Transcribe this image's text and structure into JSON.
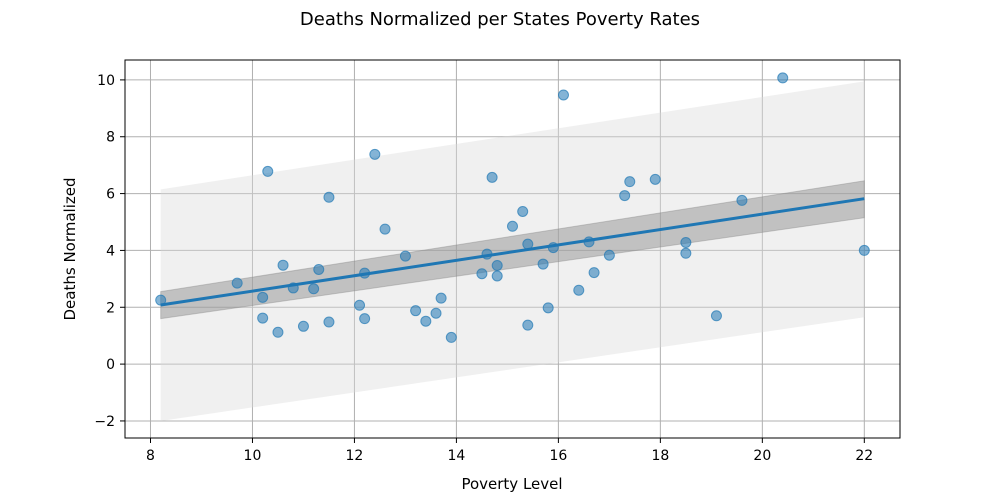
{
  "chart_data": {
    "type": "scatter",
    "title": "Deaths Normalized per States Poverty Rates",
    "xlabel": "Poverty Level",
    "ylabel": "Deaths Normalized",
    "xlim": [
      7.5,
      22.7
    ],
    "ylim": [
      -2.6,
      10.7
    ],
    "xticks": [
      8,
      10,
      12,
      14,
      16,
      18,
      20,
      22
    ],
    "yticks": [
      -2,
      0,
      2,
      4,
      6,
      8,
      10
    ],
    "grid": true,
    "colors": {
      "points": "#1f77b4",
      "regression_line": "#1f77b4",
      "confidence_band": "#888888",
      "prediction_band": "#d9d9d9"
    },
    "points": [
      {
        "x": 8.2,
        "y": 2.25
      },
      {
        "x": 9.7,
        "y": 2.85
      },
      {
        "x": 10.2,
        "y": 2.35
      },
      {
        "x": 10.2,
        "y": 1.62
      },
      {
        "x": 10.3,
        "y": 6.78
      },
      {
        "x": 10.5,
        "y": 1.12
      },
      {
        "x": 10.6,
        "y": 3.48
      },
      {
        "x": 10.8,
        "y": 2.68
      },
      {
        "x": 11.0,
        "y": 1.33
      },
      {
        "x": 11.2,
        "y": 2.65
      },
      {
        "x": 11.3,
        "y": 3.33
      },
      {
        "x": 11.5,
        "y": 5.87
      },
      {
        "x": 11.5,
        "y": 1.48
      },
      {
        "x": 12.1,
        "y": 2.07
      },
      {
        "x": 12.2,
        "y": 3.2
      },
      {
        "x": 12.2,
        "y": 1.6
      },
      {
        "x": 12.4,
        "y": 7.38
      },
      {
        "x": 12.6,
        "y": 4.75
      },
      {
        "x": 13.0,
        "y": 3.8
      },
      {
        "x": 13.2,
        "y": 1.88
      },
      {
        "x": 13.4,
        "y": 1.51
      },
      {
        "x": 13.6,
        "y": 1.79
      },
      {
        "x": 13.7,
        "y": 2.32
      },
      {
        "x": 13.9,
        "y": 0.94
      },
      {
        "x": 14.5,
        "y": 3.18
      },
      {
        "x": 14.6,
        "y": 3.87
      },
      {
        "x": 14.7,
        "y": 6.57
      },
      {
        "x": 14.8,
        "y": 3.47
      },
      {
        "x": 14.8,
        "y": 3.1
      },
      {
        "x": 15.1,
        "y": 4.85
      },
      {
        "x": 15.3,
        "y": 5.37
      },
      {
        "x": 15.4,
        "y": 4.22
      },
      {
        "x": 15.4,
        "y": 1.37
      },
      {
        "x": 15.7,
        "y": 3.52
      },
      {
        "x": 15.8,
        "y": 1.98
      },
      {
        "x": 15.9,
        "y": 4.1
      },
      {
        "x": 16.1,
        "y": 9.47
      },
      {
        "x": 16.4,
        "y": 2.6
      },
      {
        "x": 16.6,
        "y": 4.3
      },
      {
        "x": 16.7,
        "y": 3.22
      },
      {
        "x": 17.0,
        "y": 3.83
      },
      {
        "x": 17.3,
        "y": 5.93
      },
      {
        "x": 17.4,
        "y": 6.42
      },
      {
        "x": 17.9,
        "y": 6.5
      },
      {
        "x": 18.5,
        "y": 4.28
      },
      {
        "x": 18.5,
        "y": 3.9
      },
      {
        "x": 19.1,
        "y": 1.7
      },
      {
        "x": 19.6,
        "y": 5.76
      },
      {
        "x": 20.4,
        "y": 10.07
      },
      {
        "x": 22.0,
        "y": 4.0
      }
    ],
    "regression": {
      "x_start": 8.2,
      "y_start": 2.08,
      "x_end": 22.0,
      "y_end": 5.82
    },
    "confidence_band": {
      "x": [
        8.2,
        22.0
      ],
      "upper": [
        2.55,
        6.45
      ],
      "lower": [
        1.6,
        5.15
      ]
    },
    "prediction_band": {
      "x": [
        8.2,
        22.0
      ],
      "upper": [
        6.15,
        9.95
      ],
      "lower": [
        -2.0,
        1.65
      ]
    }
  }
}
